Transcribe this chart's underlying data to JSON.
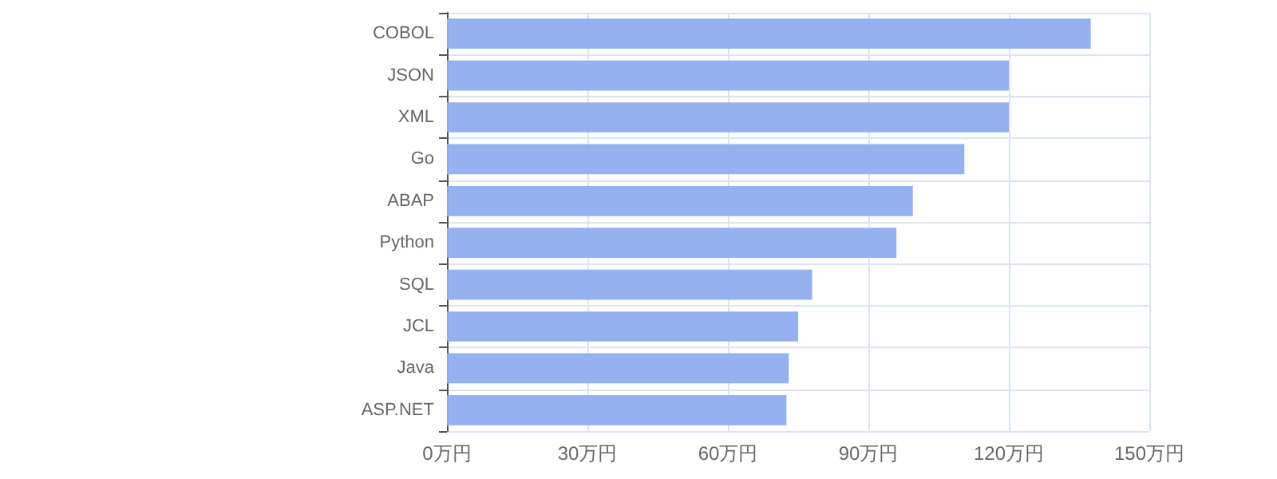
{
  "chart_data": {
    "type": "bar",
    "orientation": "horizontal",
    "categories": [
      "COBOL",
      "JSON",
      "XML",
      "Go",
      "ABAP",
      "Python",
      "SQL",
      "JCL",
      "Java",
      "ASP.NET"
    ],
    "values": [
      137.5,
      120,
      120,
      110.5,
      99.5,
      96,
      78,
      75,
      73,
      72.5
    ],
    "color": "#8fadee",
    "xlim": [
      0,
      150
    ],
    "xticks": [
      {
        "value": 0,
        "label": "0万円"
      },
      {
        "value": 30,
        "label": "30万円"
      },
      {
        "value": 60,
        "label": "60万円"
      },
      {
        "value": 90,
        "label": "90万円"
      },
      {
        "value": 120,
        "label": "120万円"
      },
      {
        "value": 150,
        "label": "150万円"
      }
    ],
    "grid": true
  }
}
